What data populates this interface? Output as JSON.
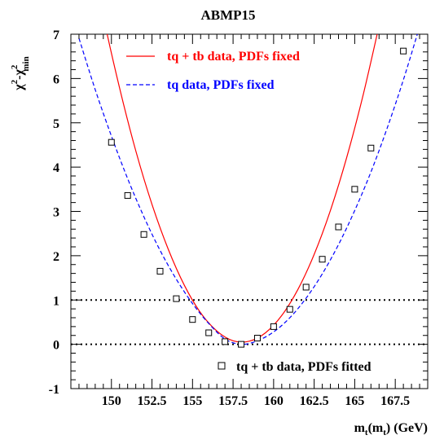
{
  "chart_data": {
    "type": "line",
    "title": "ABMP15",
    "xlabel": {
      "main": "m",
      "sub1": "t",
      "paren": "(m",
      "sub2": "t",
      "tail": ") (GeV)"
    },
    "ylabel": {
      "chi": "χ",
      "sup": "2",
      "minus": "-χ",
      "sup2": "2",
      "sub": "min"
    },
    "xlim": [
      147.5,
      169.5
    ],
    "ylim": [
      -1,
      7
    ],
    "xticks": [
      150,
      152.5,
      155,
      157.5,
      160,
      162.5,
      165,
      167.5
    ],
    "xtick_labels": [
      "150",
      "152.5",
      "155",
      "157.5",
      "160",
      "162.5",
      "165",
      "167.5"
    ],
    "yticks": [
      -1,
      0,
      1,
      2,
      3,
      4,
      5,
      6,
      7
    ],
    "ytick_labels": [
      "-1",
      "0",
      "1",
      "2",
      "3",
      "4",
      "5",
      "6",
      "7"
    ],
    "reference_lines": [
      0,
      1
    ],
    "series": [
      {
        "name": "tq + tb data, PDFs fixed",
        "style": "solid",
        "color": "#ff0000",
        "x": [
          148.5,
          149.5,
          150.5,
          151.5,
          152.5,
          153.5,
          154.5,
          155.5,
          156.5,
          157.5,
          158.5,
          159.5,
          160.5,
          161.5,
          162.5,
          163.5,
          164.5,
          165.5,
          166.5
        ],
        "y": [
          9.21,
          7.4,
          5.79,
          4.37,
          3.16,
          2.15,
          1.33,
          0.71,
          0.3,
          0.08,
          0.07,
          0.26,
          0.65,
          1.24,
          2.03,
          3.02,
          4.21,
          5.6,
          7.19
        ]
      },
      {
        "name": "tq data, PDFs fixed",
        "style": "dashed",
        "color": "#0000ff",
        "x": [
          148.0,
          149.0,
          150.0,
          151.0,
          152.0,
          153.0,
          154.0,
          155.0,
          156.0,
          157.0,
          158.0,
          159.0,
          160.0,
          161.0,
          162.0,
          163.0,
          164.0,
          165.0,
          166.0,
          167.0,
          168.0,
          169.0
        ],
        "y": [
          6.91,
          5.75,
          4.7,
          3.74,
          2.88,
          2.12,
          1.47,
          0.92,
          0.47,
          0.12,
          0.0,
          0.08,
          0.28,
          0.6,
          1.04,
          1.59,
          2.25,
          3.02,
          3.89,
          4.88,
          5.97,
          7.17
        ]
      },
      {
        "name": "tq + tb data, PDFs fitted",
        "style": "markers",
        "color": "#000000",
        "x": [
          150,
          151,
          152,
          153,
          154,
          155,
          156,
          157,
          158,
          159,
          160,
          161,
          162,
          163,
          164,
          165,
          166,
          168
        ],
        "y": [
          4.56,
          3.36,
          2.48,
          1.65,
          1.03,
          0.56,
          0.26,
          0.06,
          0.0,
          0.14,
          0.4,
          0.79,
          1.29,
          1.92,
          2.65,
          3.5,
          4.43,
          6.62
        ]
      }
    ],
    "legend": [
      {
        "label": "tq + tb data, PDFs fixed",
        "color": "#ff0000"
      },
      {
        "label": "tq data, PDFs fixed",
        "color": "#0000ff"
      },
      {
        "label": "tq + tb data, PDFs fitted",
        "color": "#000000"
      }
    ]
  }
}
